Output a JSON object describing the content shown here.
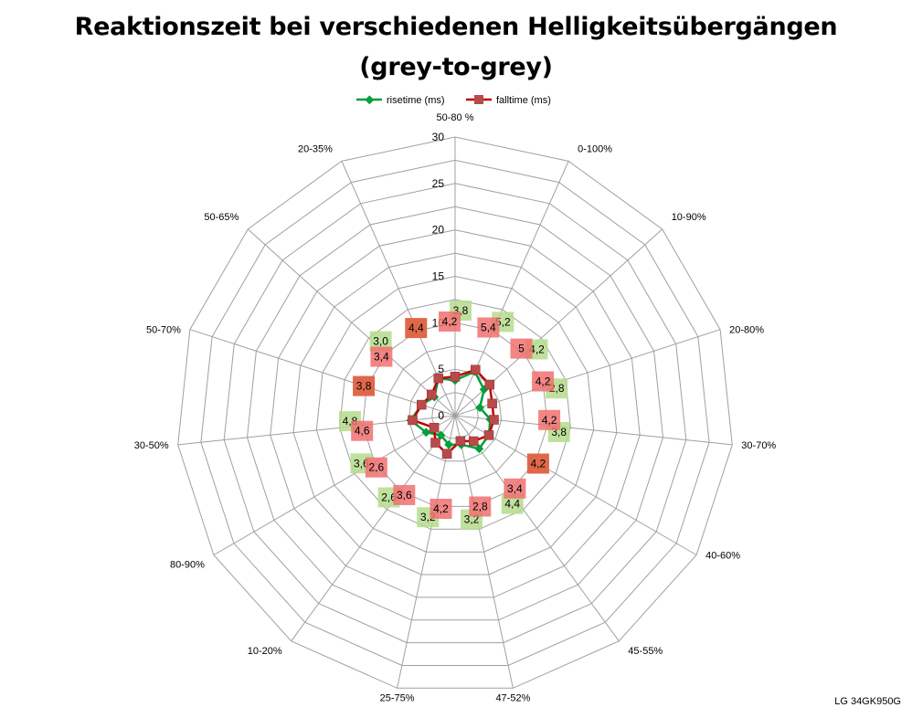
{
  "chart_data": {
    "type": "radar",
    "title_lines": [
      "Reaktionszeit bei verschiedenen Helligkeitsübergängen",
      "(grey-to-grey)"
    ],
    "categories": [
      "50-80 %",
      "0-100%",
      "10-90%",
      "20-80%",
      "30-70%",
      "40-60%",
      "45-55%",
      "47-52%",
      "25-75%",
      "10-20%",
      "80-90%",
      "30-50%",
      "50-70%",
      "50-65%",
      "20-35%"
    ],
    "r_ticks": [
      "0",
      "5",
      "10",
      "15",
      "20",
      "25",
      "30"
    ],
    "rlim": [
      0,
      30
    ],
    "legend_position": "top",
    "series": [
      {
        "name": "risetime (ms)",
        "color": "#00a03c",
        "label_bg": "#b5dc8c",
        "values": [
          3.8,
          5.2,
          4.2,
          2.8,
          3.8,
          4.2,
          4.4,
          3.2,
          3.2,
          2.6,
          3.6,
          4.8,
          3.8,
          3.0,
          4.4
        ],
        "labels": [
          "3,8",
          "5,2",
          "4,2",
          "2,8",
          "3,8",
          "4,2",
          "4,4",
          "3,2",
          "3,2",
          "2,6",
          "3,6",
          "4,8",
          "3,8",
          "3,0",
          "4,4"
        ]
      },
      {
        "name": "falltime (ms)",
        "color": "#c00000",
        "label_bg": "#f07070",
        "values": [
          4.2,
          5.4,
          5.0,
          4.2,
          4.2,
          4.2,
          3.4,
          2.8,
          4.2,
          3.6,
          2.6,
          4.6,
          3.8,
          3.4,
          4.4
        ],
        "labels": [
          "4,2",
          "5,4",
          "5",
          "4,2",
          "4,2",
          "4,2",
          "3,4",
          "2,8",
          "4,2",
          "3,6",
          "2,6",
          "4,6",
          "3,8",
          "3,4",
          "4,4"
        ]
      }
    ]
  },
  "footnote": "LG 34GK950G",
  "colors": {
    "grid": "#a0a0a0",
    "text": "#000000",
    "overlap_label_bg": "#e0684a"
  }
}
